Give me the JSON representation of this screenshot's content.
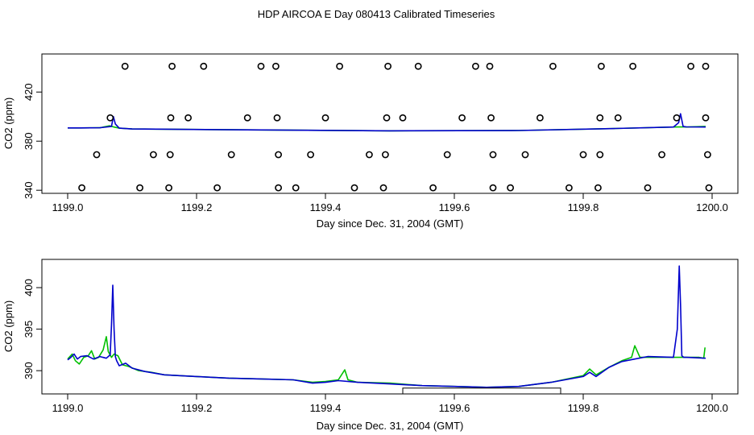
{
  "title": "HDP AIRCOA E  Day 080413  Calibrated Timeseries",
  "colors": {
    "green": "#00c000",
    "blue": "#0000cc",
    "black": "#000000"
  },
  "chart_data": [
    {
      "type": "scatter",
      "xlabel": "Day since Dec. 31, 2004 (GMT)",
      "ylabel": "CO2 (ppm)",
      "xlim": [
        1199.0,
        1200.0
      ],
      "ylim": [
        337.5,
        451
      ],
      "xticks": [
        "1199.0",
        "1199.2",
        "1199.4",
        "1199.6",
        "1199.8",
        "1200.0"
      ],
      "yticks": [
        "340",
        "380",
        "420"
      ],
      "ytick_values": [
        340,
        380,
        420
      ],
      "markers": [
        {
          "x": 1199.089,
          "y": 441
        },
        {
          "x": 1199.162,
          "y": 441
        },
        {
          "x": 1199.211,
          "y": 441
        },
        {
          "x": 1199.3,
          "y": 441
        },
        {
          "x": 1199.323,
          "y": 441
        },
        {
          "x": 1199.422,
          "y": 441
        },
        {
          "x": 1199.497,
          "y": 441
        },
        {
          "x": 1199.544,
          "y": 441
        },
        {
          "x": 1199.633,
          "y": 441
        },
        {
          "x": 1199.655,
          "y": 441
        },
        {
          "x": 1199.753,
          "y": 441
        },
        {
          "x": 1199.828,
          "y": 441
        },
        {
          "x": 1199.877,
          "y": 441
        },
        {
          "x": 1199.967,
          "y": 441
        },
        {
          "x": 1199.99,
          "y": 441
        },
        {
          "x": 1199.066,
          "y": 399
        },
        {
          "x": 1199.16,
          "y": 399
        },
        {
          "x": 1199.187,
          "y": 399
        },
        {
          "x": 1199.279,
          "y": 399
        },
        {
          "x": 1199.325,
          "y": 399
        },
        {
          "x": 1199.4,
          "y": 399
        },
        {
          "x": 1199.495,
          "y": 399
        },
        {
          "x": 1199.52,
          "y": 399
        },
        {
          "x": 1199.612,
          "y": 399
        },
        {
          "x": 1199.657,
          "y": 399
        },
        {
          "x": 1199.733,
          "y": 399
        },
        {
          "x": 1199.826,
          "y": 399
        },
        {
          "x": 1199.854,
          "y": 399
        },
        {
          "x": 1199.945,
          "y": 399
        },
        {
          "x": 1199.99,
          "y": 399
        },
        {
          "x": 1199.045,
          "y": 369
        },
        {
          "x": 1199.133,
          "y": 369
        },
        {
          "x": 1199.159,
          "y": 369
        },
        {
          "x": 1199.254,
          "y": 369
        },
        {
          "x": 1199.327,
          "y": 369
        },
        {
          "x": 1199.377,
          "y": 369
        },
        {
          "x": 1199.468,
          "y": 369
        },
        {
          "x": 1199.493,
          "y": 369
        },
        {
          "x": 1199.589,
          "y": 369
        },
        {
          "x": 1199.66,
          "y": 369
        },
        {
          "x": 1199.71,
          "y": 369
        },
        {
          "x": 1199.8,
          "y": 369
        },
        {
          "x": 1199.826,
          "y": 369
        },
        {
          "x": 1199.922,
          "y": 369
        },
        {
          "x": 1199.993,
          "y": 369
        },
        {
          "x": 1199.022,
          "y": 342
        },
        {
          "x": 1199.112,
          "y": 342
        },
        {
          "x": 1199.157,
          "y": 342
        },
        {
          "x": 1199.232,
          "y": 342
        },
        {
          "x": 1199.327,
          "y": 342
        },
        {
          "x": 1199.354,
          "y": 342
        },
        {
          "x": 1199.445,
          "y": 342
        },
        {
          "x": 1199.49,
          "y": 342
        },
        {
          "x": 1199.567,
          "y": 342
        },
        {
          "x": 1199.66,
          "y": 342
        },
        {
          "x": 1199.687,
          "y": 342
        },
        {
          "x": 1199.778,
          "y": 342
        },
        {
          "x": 1199.823,
          "y": 342
        },
        {
          "x": 1199.9,
          "y": 342
        },
        {
          "x": 1199.995,
          "y": 342
        }
      ],
      "series": [
        {
          "color": "#00c000",
          "x": [
            1199.0,
            1199.02,
            1199.05,
            1199.065,
            1199.072,
            1199.08,
            1199.1,
            1199.3,
            1199.5,
            1199.7,
            1199.85,
            1199.94,
            1199.952,
            1199.96,
            1199.99
          ],
          "y": [
            390.8,
            390.8,
            390.9,
            392.5,
            391.5,
            390.6,
            389.9,
            389.1,
            388.4,
            388.7,
            390.3,
            391.5,
            391.6,
            391.5,
            392.0
          ]
        },
        {
          "color": "#0000cc",
          "x": [
            1199.0,
            1199.02,
            1199.05,
            1199.068,
            1199.071,
            1199.074,
            1199.08,
            1199.1,
            1199.3,
            1199.5,
            1199.7,
            1199.85,
            1199.94,
            1199.948,
            1199.951,
            1199.955,
            1199.96,
            1199.99
          ],
          "y": [
            390.8,
            390.8,
            390.9,
            392.0,
            400.0,
            394.0,
            390.6,
            389.9,
            389.1,
            388.4,
            388.7,
            390.3,
            391.5,
            395.0,
            402.3,
            392.0,
            391.6,
            391.5
          ]
        }
      ]
    },
    {
      "type": "line",
      "xlabel": "Day since Dec. 31, 2004 (GMT)",
      "ylabel": "CO2 (ppm)",
      "xlim": [
        1199.0,
        1200.0
      ],
      "ylim": [
        387.2,
        403.4
      ],
      "xticks": [
        "1199.0",
        "1199.2",
        "1199.4",
        "1199.6",
        "1199.8",
        "1200.0"
      ],
      "yticks": [
        "390",
        "395",
        "400"
      ],
      "ytick_values": [
        390,
        395,
        400
      ],
      "bracket": {
        "x": [
          1199.52,
          1199.765
        ],
        "y": 387.9
      },
      "series": [
        {
          "color": "#00c000",
          "x": [
            1199.0,
            1199.007,
            1199.012,
            1199.018,
            1199.025,
            1199.032,
            1199.037,
            1199.042,
            1199.048,
            1199.055,
            1199.06,
            1199.063,
            1199.068,
            1199.072,
            1199.078,
            1199.085,
            1199.095,
            1199.11,
            1199.13,
            1199.15,
            1199.2,
            1199.25,
            1199.3,
            1199.35,
            1199.38,
            1199.4,
            1199.42,
            1199.43,
            1199.435,
            1199.45,
            1199.5,
            1199.55,
            1199.6,
            1199.65,
            1199.7,
            1199.75,
            1199.8,
            1199.81,
            1199.82,
            1199.84,
            1199.86,
            1199.875,
            1199.88,
            1199.888,
            1199.9,
            1199.95,
            1199.98,
            1199.987,
            1199.989
          ],
          "y": [
            391.4,
            392.0,
            391.2,
            390.8,
            391.6,
            391.8,
            392.4,
            391.4,
            391.6,
            392.5,
            394.1,
            392.3,
            391.6,
            392.0,
            391.8,
            390.7,
            390.5,
            390.0,
            389.8,
            389.5,
            389.3,
            389.1,
            389.0,
            388.9,
            388.6,
            388.7,
            388.9,
            390.1,
            388.9,
            388.6,
            388.5,
            388.2,
            388.1,
            388.0,
            388.1,
            388.6,
            389.4,
            390.2,
            389.5,
            390.4,
            391.2,
            391.6,
            393.0,
            391.6,
            391.6,
            391.6,
            391.6,
            391.5,
            392.8
          ]
        },
        {
          "color": "#0000cc",
          "x": [
            1199.0,
            1199.005,
            1199.01,
            1199.015,
            1199.02,
            1199.03,
            1199.04,
            1199.05,
            1199.06,
            1199.066,
            1199.068,
            1199.07,
            1199.072,
            1199.074,
            1199.076,
            1199.08,
            1199.09,
            1199.1,
            1199.12,
            1199.15,
            1199.2,
            1199.25,
            1199.3,
            1199.35,
            1199.38,
            1199.4,
            1199.42,
            1199.45,
            1199.5,
            1199.55,
            1199.6,
            1199.65,
            1199.7,
            1199.75,
            1199.8,
            1199.81,
            1199.82,
            1199.84,
            1199.86,
            1199.88,
            1199.9,
            1199.94,
            1199.946,
            1199.949,
            1199.951,
            1199.953,
            1199.956,
            1199.96,
            1199.99
          ],
          "y": [
            391.3,
            391.6,
            392.0,
            391.4,
            391.7,
            391.8,
            391.4,
            391.7,
            391.5,
            391.9,
            395.5,
            400.3,
            395.0,
            391.7,
            391.2,
            390.6,
            390.9,
            390.3,
            389.9,
            389.5,
            389.3,
            389.1,
            389.0,
            388.9,
            388.5,
            388.6,
            388.8,
            388.6,
            388.4,
            388.2,
            388.1,
            388.0,
            388.1,
            388.6,
            389.3,
            389.8,
            389.3,
            390.4,
            391.1,
            391.4,
            391.7,
            391.6,
            395.0,
            402.6,
            398.0,
            391.8,
            391.6,
            391.6,
            391.5
          ]
        }
      ]
    }
  ]
}
